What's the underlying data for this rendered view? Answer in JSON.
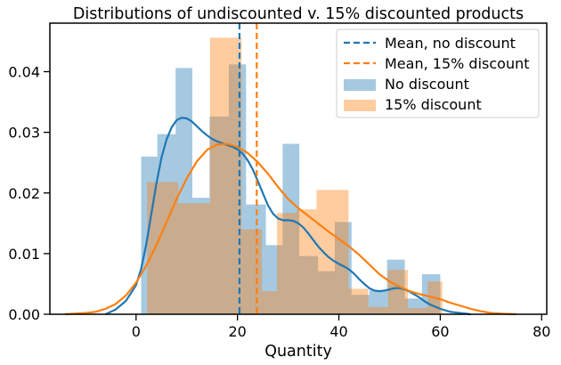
{
  "chart_data": {
    "type": "histogram",
    "title": "Distributions of undiscounted v. 15% discounted products",
    "xlabel": "Quantity",
    "ylabel": "",
    "xlim": [
      -17,
      81
    ],
    "ylim": [
      0,
      0.048
    ],
    "xticks": [
      0,
      20,
      40,
      60,
      80
    ],
    "yticks": [
      0.0,
      0.01,
      0.02,
      0.03,
      0.04
    ],
    "legend_position": "top-right",
    "grid": false,
    "series": [
      {
        "name": "No discount",
        "color": "#1f77b4",
        "bars": [
          {
            "x0": 1,
            "x1": 4.2,
            "y": 0.026
          },
          {
            "x0": 4.2,
            "x1": 7.8,
            "y": 0.0297
          },
          {
            "x0": 7.8,
            "x1": 11.1,
            "y": 0.0406
          },
          {
            "x0": 11.1,
            "x1": 14.5,
            "y": 0.0192
          },
          {
            "x0": 14.5,
            "x1": 18.3,
            "y": 0.0326
          },
          {
            "x0": 18.3,
            "x1": 21.7,
            "y": 0.0412
          },
          {
            "x0": 21.7,
            "x1": 25.6,
            "y": 0.0181
          },
          {
            "x0": 25.6,
            "x1": 28.9,
            "y": 0.0114
          },
          {
            "x0": 28.9,
            "x1": 32.2,
            "y": 0.0281
          },
          {
            "x0": 32.2,
            "x1": 35.9,
            "y": 0.0096
          },
          {
            "x0": 35.9,
            "x1": 39.2,
            "y": 0.0071
          },
          {
            "x0": 39.2,
            "x1": 42.5,
            "y": 0.0152
          },
          {
            "x0": 42.5,
            "x1": 46,
            "y": 0.0032
          },
          {
            "x0": 46,
            "x1": 49.5,
            "y": 0.004
          },
          {
            "x0": 49.5,
            "x1": 53,
            "y": 0.009
          },
          {
            "x0": 53,
            "x1": 56.4,
            "y": 0.0026
          },
          {
            "x0": 56.4,
            "x1": 60,
            "y": 0.0066
          }
        ],
        "kde": [
          [
            -6,
            0.0
          ],
          [
            -4,
            0.0008
          ],
          [
            -2,
            0.0022
          ],
          [
            0,
            0.0048
          ],
          [
            1,
            0.0075
          ],
          [
            2,
            0.0115
          ],
          [
            3,
            0.0165
          ],
          [
            4,
            0.0215
          ],
          [
            5,
            0.0258
          ],
          [
            6,
            0.0288
          ],
          [
            7,
            0.0308
          ],
          [
            8,
            0.032
          ],
          [
            9,
            0.0324
          ],
          [
            10,
            0.0323
          ],
          [
            11,
            0.0318
          ],
          [
            12,
            0.031
          ],
          [
            13,
            0.0302
          ],
          [
            14,
            0.0295
          ],
          [
            15,
            0.0289
          ],
          [
            16,
            0.0285
          ],
          [
            17,
            0.0282
          ],
          [
            18,
            0.0279
          ],
          [
            19,
            0.0276
          ],
          [
            20,
            0.0272
          ],
          [
            21,
            0.0265
          ],
          [
            22,
            0.0254
          ],
          [
            23,
            0.0239
          ],
          [
            24,
            0.022
          ],
          [
            25,
            0.02
          ],
          [
            26,
            0.018
          ],
          [
            27,
            0.0166
          ],
          [
            28,
            0.0158
          ],
          [
            29,
            0.0155
          ],
          [
            30,
            0.0155
          ],
          [
            31,
            0.0154
          ],
          [
            32,
            0.015
          ],
          [
            33,
            0.0143
          ],
          [
            34,
            0.0133
          ],
          [
            35,
            0.0122
          ],
          [
            36,
            0.0111
          ],
          [
            37,
            0.0102
          ],
          [
            38,
            0.0094
          ],
          [
            39,
            0.0088
          ],
          [
            40,
            0.0083
          ],
          [
            41,
            0.0079
          ],
          [
            42,
            0.0074
          ],
          [
            43,
            0.0067
          ],
          [
            44,
            0.0058
          ],
          [
            45,
            0.005
          ],
          [
            46,
            0.0043
          ],
          [
            47,
            0.0039
          ],
          [
            48,
            0.0038
          ],
          [
            49,
            0.0039
          ],
          [
            50,
            0.0041
          ],
          [
            51,
            0.0043
          ],
          [
            52,
            0.0043
          ],
          [
            53,
            0.0041
          ],
          [
            54,
            0.0037
          ],
          [
            55,
            0.0032
          ],
          [
            56,
            0.0027
          ],
          [
            57,
            0.0021
          ],
          [
            58,
            0.0016
          ],
          [
            60,
            0.0009
          ],
          [
            62,
            0.0004
          ],
          [
            64,
            0.0002
          ],
          [
            66,
            0.0
          ]
        ]
      },
      {
        "name": "15% discount",
        "color": "#ff7f0e",
        "bars": [
          {
            "x0": 2.2,
            "x1": 8.3,
            "y": 0.0218
          },
          {
            "x0": 8.3,
            "x1": 14.6,
            "y": 0.0183
          },
          {
            "x0": 14.6,
            "x1": 20.8,
            "y": 0.0456
          },
          {
            "x0": 20.8,
            "x1": 24.8,
            "y": 0.014
          },
          {
            "x0": 24.8,
            "x1": 27.8,
            "y": 0.0038
          },
          {
            "x0": 27.8,
            "x1": 31.7,
            "y": 0.0167
          },
          {
            "x0": 31.7,
            "x1": 35.6,
            "y": 0.0173
          },
          {
            "x0": 35.6,
            "x1": 41.9,
            "y": 0.0205
          },
          {
            "x0": 41.9,
            "x1": 45.8,
            "y": 0.0042
          },
          {
            "x0": 45.8,
            "x1": 49.7,
            "y": 0.0012
          },
          {
            "x0": 49.7,
            "x1": 53.6,
            "y": 0.0073
          },
          {
            "x0": 53.6,
            "x1": 57.5,
            "y": 0.001
          },
          {
            "x0": 57.5,
            "x1": 60.4,
            "y": 0.0054
          }
        ],
        "kde": [
          [
            -14,
            0.0
          ],
          [
            -10,
            0.0002
          ],
          [
            -8,
            0.0004
          ],
          [
            -6,
            0.0009
          ],
          [
            -4,
            0.0017
          ],
          [
            -2,
            0.0031
          ],
          [
            0,
            0.0052
          ],
          [
            2,
            0.008
          ],
          [
            4,
            0.0114
          ],
          [
            6,
            0.0152
          ],
          [
            8,
            0.019
          ],
          [
            10,
            0.0224
          ],
          [
            12,
            0.0252
          ],
          [
            14,
            0.0271
          ],
          [
            16,
            0.028
          ],
          [
            18,
            0.0281
          ],
          [
            20,
            0.0276
          ],
          [
            22,
            0.0266
          ],
          [
            24,
            0.0251
          ],
          [
            26,
            0.0232
          ],
          [
            28,
            0.021
          ],
          [
            30,
            0.019
          ],
          [
            32,
            0.0175
          ],
          [
            34,
            0.0162
          ],
          [
            36,
            0.0149
          ],
          [
            38,
            0.0136
          ],
          [
            40,
            0.0124
          ],
          [
            42,
            0.0112
          ],
          [
            44,
            0.0098
          ],
          [
            46,
            0.0082
          ],
          [
            48,
            0.0066
          ],
          [
            50,
            0.0054
          ],
          [
            52,
            0.0045
          ],
          [
            54,
            0.0038
          ],
          [
            56,
            0.0033
          ],
          [
            58,
            0.0029
          ],
          [
            60,
            0.0025
          ],
          [
            62,
            0.0019
          ],
          [
            64,
            0.0014
          ],
          [
            66,
            0.0009
          ],
          [
            68,
            0.0005
          ],
          [
            70,
            0.0002
          ],
          [
            72,
            0.0001
          ],
          [
            75,
            0.0
          ]
        ]
      }
    ],
    "mean_lines": [
      {
        "name": "Mean, no discount",
        "x": 20.4,
        "color": "#1f77b4"
      },
      {
        "name": "Mean, 15% discount",
        "x": 23.8,
        "color": "#ff7f0e"
      }
    ]
  }
}
